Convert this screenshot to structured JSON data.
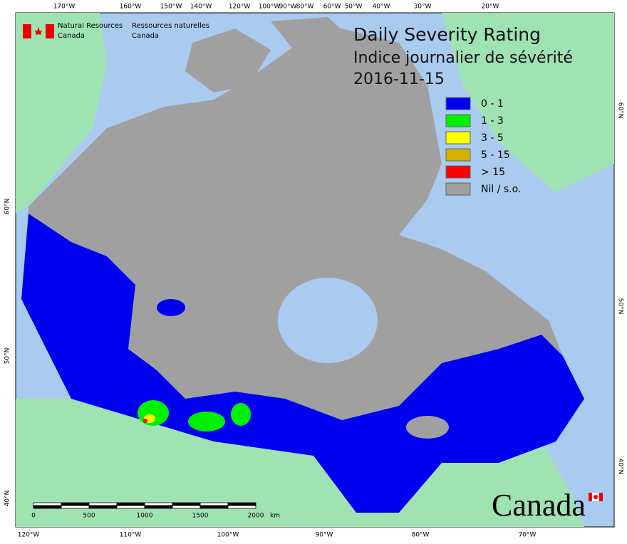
{
  "header": {
    "title": "Daily Severity Rating",
    "subtitle": "Indice journalier de sévérité",
    "date": "2016-11-15"
  },
  "logo": {
    "english": [
      "Natural Resources",
      "Canada"
    ],
    "french": [
      "Ressources naturelles",
      "Canada"
    ],
    "wordmark": "Canada"
  },
  "legend": [
    {
      "label": "0 - 1",
      "color": "#0000f0"
    },
    {
      "label": "1 - 3",
      "color": "#00f000"
    },
    {
      "label": "3 - 5",
      "color": "#ffff00"
    },
    {
      "label": "5 - 15",
      "color": "#d4b000"
    },
    {
      "label": "> 15",
      "color": "#ff0000"
    },
    {
      "label": "Nil / s.o.",
      "color": "#a0a0a0"
    }
  ],
  "graticule": {
    "top": [
      "170°W",
      "160°W",
      "150°W",
      "140°W",
      "120°W",
      "100°W",
      "90°W",
      "80°W",
      "60°W",
      "50°W",
      "40°W",
      "30°W",
      "20°W"
    ],
    "bottom": [
      "120°W",
      "110°W",
      "100°W",
      "90°W",
      "80°W",
      "70°W"
    ],
    "left": [
      "60°N",
      "50°N",
      "40°N"
    ],
    "right": [
      "60°N",
      "50°N",
      "40°N"
    ]
  },
  "scale_bar": {
    "ticks": [
      "0",
      "500",
      "1000",
      "1500",
      "2000"
    ],
    "unit": "km"
  }
}
